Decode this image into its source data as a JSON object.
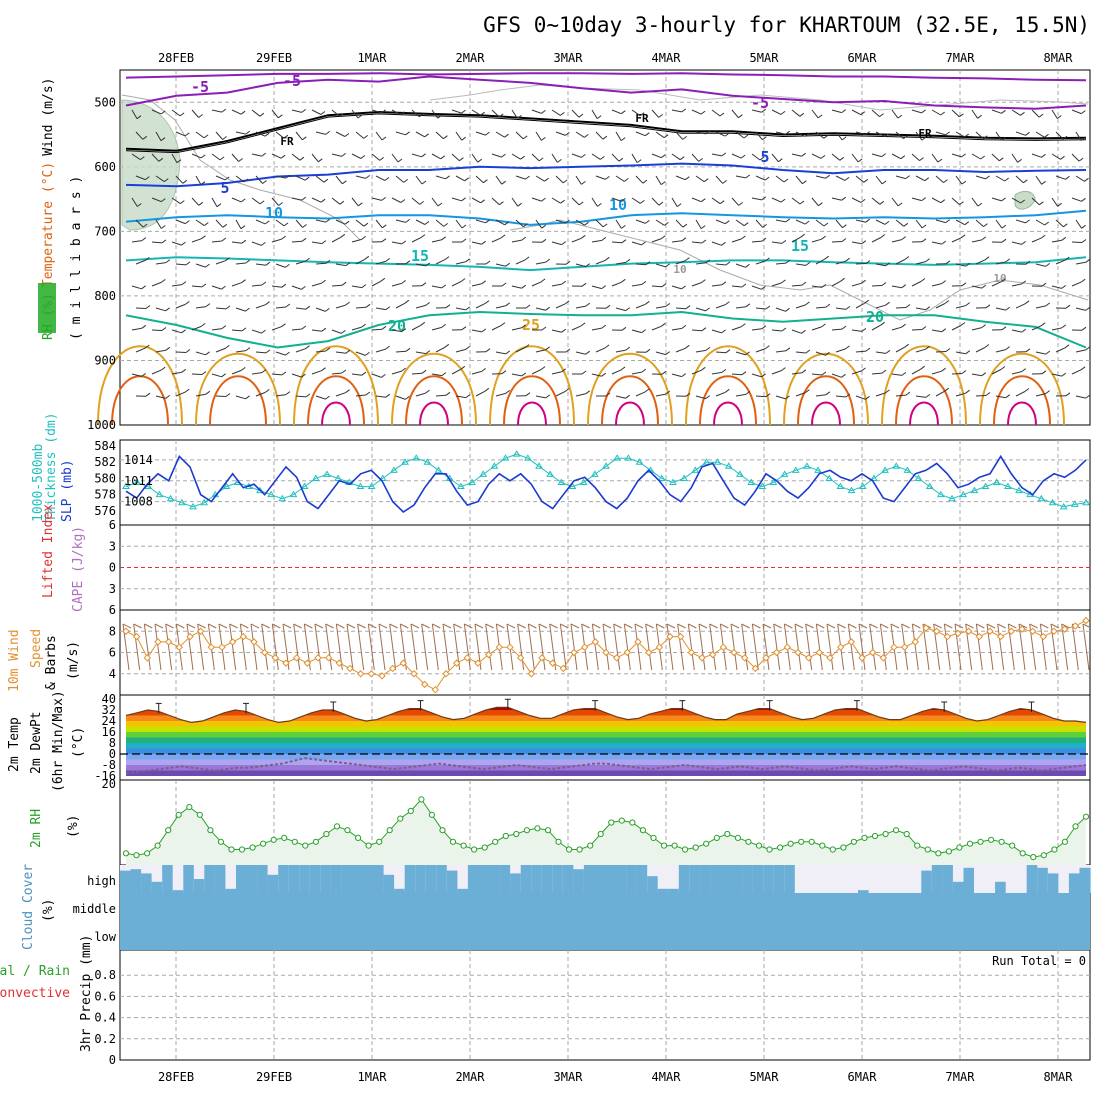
{
  "title": "GFS 0~10day 3-hourly for KHARTOUM (32.5E, 15.5N)",
  "colors": {
    "grid": "#aaaaaa",
    "temp_minus5": "#8a1fb5",
    "temp_fr": "#000000",
    "temp_5": "#1a3fd6",
    "temp_10": "#1496e0",
    "temp_15": "#15b5b5",
    "temp_20": "#10b090",
    "temp_25": "#e0a020",
    "temp_30": "#e06010",
    "temp_35": "#d00080",
    "slp": "#1a3ad0",
    "thickness": "#20c0c0",
    "wind": "#e09030",
    "barb": "#a07050",
    "rh": "#2aa02a",
    "cloud": "#6baed6",
    "cloud_clear": "#f0eef6",
    "dewpt": "#7a6090",
    "li_zero": "#e03030"
  },
  "chart_data": [
    {
      "panel": "upper_air",
      "type": "contour",
      "x_labels": [
        "28FEB",
        "29FEB",
        "1MAR",
        "2MAR",
        "3MAR",
        "4MAR",
        "5MAR",
        "6MAR",
        "7MAR",
        "8MAR"
      ],
      "ylabel_parts": [
        {
          "text": "RH (%)",
          "color": "#2aa02a"
        },
        {
          "text": "Temperature (°C)",
          "color": "#e06010"
        },
        {
          "text": "Wind (m/s)",
          "color": "#000000"
        },
        {
          "text": "( m i l l i b a r s )",
          "color": "#000000"
        }
      ],
      "y_ticks": [
        500,
        600,
        700,
        800,
        900,
        1000
      ],
      "ylim": [
        450,
        1000
      ],
      "isotherms": [
        {
          "label": "-5",
          "color_key": "temp_minus5",
          "levels": [
            505,
            490,
            485,
            470,
            465,
            468,
            460,
            465,
            470,
            478,
            485,
            480,
            490,
            495,
            500,
            498,
            505,
            508,
            510,
            505
          ]
        },
        {
          "label": "FR",
          "color_key": "temp_fr",
          "levels": [
            572,
            575,
            560,
            540,
            520,
            515,
            518,
            520,
            525,
            530,
            535,
            545,
            545,
            550,
            548,
            550,
            552,
            555,
            556,
            555
          ]
        },
        {
          "label": "5",
          "color_key": "temp_5",
          "levels": [
            628,
            630,
            625,
            615,
            612,
            605,
            605,
            600,
            602,
            600,
            598,
            595,
            598,
            605,
            610,
            605,
            605,
            608,
            606,
            605
          ]
        },
        {
          "label": "10",
          "color_key": "temp_10",
          "levels": [
            685,
            678,
            675,
            678,
            680,
            675,
            675,
            680,
            690,
            685,
            675,
            672,
            675,
            678,
            680,
            678,
            680,
            678,
            675,
            668
          ]
        },
        {
          "label": "15",
          "color_key": "temp_15",
          "levels": [
            745,
            740,
            742,
            745,
            748,
            750,
            752,
            755,
            760,
            755,
            750,
            748,
            745,
            745,
            748,
            750,
            752,
            750,
            748,
            740
          ]
        },
        {
          "label": "20",
          "color_key": "temp_20",
          "levels": [
            830,
            845,
            865,
            880,
            870,
            845,
            830,
            825,
            828,
            830,
            830,
            825,
            835,
            840,
            835,
            830,
            830,
            840,
            848,
            880
          ]
        },
        {
          "label": "25",
          "color_key": "temp_25",
          "levels": []
        }
      ],
      "isotherm_labels": [
        "-5",
        "-5",
        "FR",
        "FR",
        "FR",
        "-5",
        "-5",
        "5",
        "5",
        "10",
        "10",
        "15",
        "15",
        "20",
        "20",
        "25",
        "10",
        "10"
      ]
    },
    {
      "panel": "slp_thickness",
      "type": "line",
      "ylabel_left_parts": [
        {
          "text": "1000-500mb",
          "color": "#20c0c0"
        },
        {
          "text": "Thickness (dm)",
          "color": "#20c0c0"
        }
      ],
      "ylabel_right": "SLP (mb)",
      "y_ticks_left": [
        576,
        578,
        580,
        582,
        584
      ],
      "y_ticks_right": [
        1008,
        1011,
        1014
      ],
      "ylim_left": [
        575,
        584
      ],
      "ylim_right": [
        1005.5,
        1016
      ],
      "series": [
        {
          "name": "SLP",
          "axis": "right",
          "color_key": "slp",
          "values": [
            1009.5,
            1008.5,
            1010.5,
            1012,
            1011,
            1014.5,
            1013,
            1009,
            1008,
            1010,
            1012,
            1010,
            1010.5,
            1009,
            1011,
            1013,
            1011.5,
            1008,
            1007,
            1009,
            1011,
            1010.5,
            1012,
            1012.5,
            1011,
            1008,
            1006.5,
            1007.5,
            1010,
            1012,
            1012,
            1009.5,
            1007.5,
            1008,
            1010.5,
            1012,
            1011,
            1012,
            1010.5,
            1008,
            1007,
            1009,
            1011,
            1011.5,
            1010,
            1008,
            1007,
            1008.5,
            1011,
            1012.5,
            1011,
            1009,
            1008,
            1010,
            1013,
            1013.5,
            1011,
            1008.5,
            1007.5,
            1009.5,
            1012,
            1011,
            1009.5,
            1008.5,
            1010,
            1012,
            1012.5,
            1011.5,
            1011,
            1012,
            1011,
            1008.5,
            1008,
            1010,
            1012,
            1012.5,
            1013.5,
            1012,
            1010,
            1010.5,
            1011.5,
            1012,
            1014.5,
            1012,
            1010,
            1009,
            1011,
            1012,
            1011.5,
            1012.5,
            1014
          ]
        },
        {
          "name": "1000-500mb Thickness",
          "axis": "left",
          "color_key": "thickness",
          "values": [
            579,
            579.5,
            579,
            578,
            577.5,
            577,
            576.5,
            577,
            578,
            579,
            579.5,
            579,
            578.5,
            578,
            577.5,
            578,
            579,
            580,
            580.5,
            580,
            579.5,
            579,
            579,
            580,
            581,
            582,
            582.5,
            582,
            581,
            580,
            579,
            579.5,
            580.5,
            581.5,
            582.5,
            583,
            582.5,
            581.5,
            580.5,
            579.5,
            579,
            579.5,
            580.5,
            581.5,
            582.5,
            582.5,
            582,
            581,
            580,
            579.5,
            580,
            581,
            582,
            582,
            581.5,
            580.5,
            579.5,
            579,
            579.5,
            580.5,
            581,
            581.5,
            581,
            580,
            579,
            578.5,
            579,
            580,
            581,
            581.5,
            581,
            580,
            579,
            578,
            577.5,
            578,
            578.5,
            579,
            579.5,
            579,
            578.5,
            578,
            577.5,
            577,
            576.5,
            576.8,
            577
          ]
        }
      ]
    },
    {
      "panel": "lifted_index_cape",
      "type": "line",
      "ylabel_left_parts": [
        {
          "text": "Lifted Index",
          "color": "#e03030"
        }
      ],
      "ylabel_right_parts": [
        {
          "text": "CAPE (J/kg)",
          "color": "#b070c0"
        }
      ],
      "y_ticks": [
        -6,
        -3,
        0,
        3,
        6
      ],
      "y_tick_labels": [
        "6",
        "3",
        "0",
        "3",
        "6"
      ],
      "ylim": [
        -6,
        6
      ],
      "series": [
        {
          "name": "Lifted Index",
          "values": []
        },
        {
          "name": "CAPE",
          "values": []
        }
      ]
    },
    {
      "panel": "wind_10m",
      "type": "line",
      "ylabel_parts": [
        {
          "text": "10m Wind",
          "color": "#e09030"
        },
        {
          "text": "Speed",
          "color": "#e09030"
        },
        {
          "text": "& Barbs",
          "color": "#000000"
        },
        {
          "text": "(m/s)",
          "color": "#000000"
        }
      ],
      "y_ticks": [
        4,
        6,
        8
      ],
      "ylim": [
        2,
        10
      ],
      "series": [
        {
          "name": "10m Wind Speed",
          "color_key": "wind",
          "values": [
            8,
            7.5,
            5.5,
            7,
            7,
            6.5,
            7.5,
            8,
            6.5,
            6.5,
            7,
            7.5,
            7,
            6,
            5.5,
            5,
            5.5,
            5,
            5.5,
            5.5,
            5,
            4.5,
            4,
            4,
            3.8,
            4.5,
            5,
            4,
            3,
            2.5,
            4,
            5,
            5.5,
            5,
            5.8,
            6.5,
            6.5,
            5.5,
            4,
            5.5,
            5,
            4.5,
            6,
            6.5,
            7,
            6,
            5.5,
            6,
            7,
            6,
            6.5,
            7.5,
            7.5,
            6,
            5.5,
            5.8,
            6.5,
            6,
            5.5,
            4.5,
            5.5,
            6,
            6.5,
            6,
            5.5,
            6,
            5.5,
            6.5,
            7,
            5.5,
            6,
            5.5,
            6.5,
            6.5,
            7,
            8.3,
            8,
            7.5,
            7.8,
            8,
            7.5,
            8,
            7.5,
            8,
            8.2,
            8,
            7.5,
            8,
            8.2,
            8.5,
            9
          ]
        }
      ]
    },
    {
      "panel": "temp_2m",
      "type": "area",
      "ylabel_parts": [
        {
          "text": "2m Temp",
          "color": "#000000"
        },
        {
          "text": "2m DewPt",
          "color": "#000000"
        },
        {
          "text": "(6hr Min/Max)",
          "color": "#000000"
        },
        {
          "text": "(°C)",
          "color": "#000000"
        }
      ],
      "y_ticks": [
        -16,
        -8,
        0,
        8,
        16,
        24,
        32,
        40
      ],
      "ylim": [
        -16,
        40
      ],
      "series": [
        {
          "name": "2m Temp",
          "values": [
            28,
            30,
            32,
            31,
            28,
            25,
            23,
            24,
            27,
            30,
            32,
            31,
            28,
            25,
            23,
            24,
            27,
            30,
            32,
            32,
            29,
            26,
            24,
            25,
            28,
            31,
            33,
            33,
            30,
            27,
            25,
            26,
            29,
            32,
            34,
            34,
            31,
            28,
            26,
            26,
            29,
            32,
            33,
            33,
            30,
            27,
            25,
            26,
            29,
            31,
            33,
            33,
            30,
            27,
            25,
            25,
            29,
            31,
            33,
            33,
            30,
            27,
            25,
            26,
            29,
            32,
            33,
            33,
            30,
            27,
            25,
            25,
            28,
            31,
            33,
            32,
            29,
            26,
            24,
            25,
            28,
            31,
            33,
            32,
            29,
            26,
            24,
            24,
            23
          ]
        },
        {
          "name": "2m DewPt",
          "values": [
            -14,
            -13,
            -12,
            -11,
            -10,
            -9,
            -10,
            -11,
            -12,
            -11,
            -10,
            -10,
            -9,
            -8,
            -7,
            -5,
            -3,
            -4,
            -5,
            -6,
            -7,
            -8,
            -9,
            -10,
            -11,
            -10,
            -9,
            -8,
            -7,
            -8,
            -9,
            -10,
            -11,
            -10,
            -9,
            -8,
            -9,
            -10,
            -11,
            -10,
            -9,
            -8,
            -7,
            -7,
            -8,
            -9,
            -10,
            -11,
            -10,
            -9,
            -8,
            -9,
            -10,
            -11,
            -10,
            -9,
            -10,
            -11,
            -10,
            -9,
            -10,
            -11,
            -12,
            -11,
            -10,
            -9,
            -10,
            -11,
            -10,
            -9,
            -10,
            -11,
            -12,
            -11,
            -10,
            -9,
            -10,
            -11,
            -12,
            -11,
            -10,
            -11,
            -12,
            -11,
            -10,
            -9,
            -8
          ]
        }
      ]
    },
    {
      "panel": "rh_2m",
      "type": "area",
      "ylabel_parts": [
        {
          "text": "2m RH",
          "color": "#2aa02a"
        },
        {
          "text": "(%)",
          "color": "#000000"
        }
      ],
      "y_ticks": [
        20
      ],
      "ylim": [
        0,
        20
      ],
      "series": [
        {
          "name": "2m RH",
          "color_key": "rh",
          "values": [
            2,
            1.5,
            2,
            4,
            8,
            12,
            14,
            12,
            8,
            5,
            3,
            3,
            3.5,
            4.5,
            5.5,
            6,
            5,
            4,
            5,
            7,
            9,
            8,
            6,
            4,
            5,
            8,
            11,
            13,
            16,
            12,
            8,
            5,
            4,
            3,
            3.5,
            5,
            6.5,
            7,
            8,
            8.5,
            8,
            5,
            3,
            3,
            4,
            7,
            10,
            10.5,
            10,
            8,
            6,
            4,
            4,
            3,
            3.5,
            4.5,
            6,
            7,
            6,
            5,
            4,
            3,
            3.5,
            4.5,
            5,
            5,
            4,
            3,
            3.5,
            5,
            6,
            6.5,
            7,
            8,
            7,
            4,
            3,
            2,
            2.5,
            3.5,
            4.5,
            5,
            5.5,
            5,
            4,
            2,
            1,
            1.5,
            3,
            5,
            9,
            11.5
          ]
        }
      ]
    },
    {
      "panel": "cloud_cover",
      "type": "bar",
      "ylabel_parts": [
        {
          "text": "Cloud Cover",
          "color": "#4a90c0"
        },
        {
          "text": "(%)",
          "color": "#000000"
        }
      ],
      "y_labels": [
        "high",
        "middle",
        "low"
      ],
      "series": [
        {
          "name": "High Cloud (%)",
          "values": [
            80,
            85,
            70,
            40,
            100,
            10,
            100,
            50,
            100,
            100,
            15,
            100,
            100,
            100,
            65,
            100,
            100,
            100,
            100,
            100,
            100,
            100,
            100,
            100,
            100,
            65,
            15,
            100,
            100,
            100,
            100,
            80,
            15,
            100,
            100,
            100,
            100,
            70,
            100,
            100,
            100,
            100,
            100,
            85,
            100,
            100,
            100,
            100,
            100,
            100,
            60,
            15,
            15,
            100,
            100,
            100,
            100,
            100,
            100,
            100,
            100,
            100,
            100,
            100,
            0,
            0,
            0,
            0,
            0,
            0,
            10,
            0,
            0,
            0,
            0,
            0,
            80,
            100,
            100,
            40,
            90,
            0,
            0,
            40,
            0,
            0,
            100,
            90,
            70,
            0,
            70,
            90
          ]
        }
      ]
    },
    {
      "panel": "precip_3hr",
      "type": "bar",
      "ylabel_parts": [
        {
          "text": "Total / Rain",
          "color": "#2aa02a"
        },
        {
          "text": "Convective",
          "color": "#e03030"
        },
        {
          "text": "3hr Precip (mm)",
          "color": "#000000"
        }
      ],
      "y_ticks": [
        0,
        0.2,
        0.4,
        0.6,
        0.8
      ],
      "ylim": [
        0,
        1
      ],
      "run_total_label": "Run Total = 0",
      "series": [
        {
          "name": "3hr Precip",
          "values": []
        }
      ]
    }
  ]
}
